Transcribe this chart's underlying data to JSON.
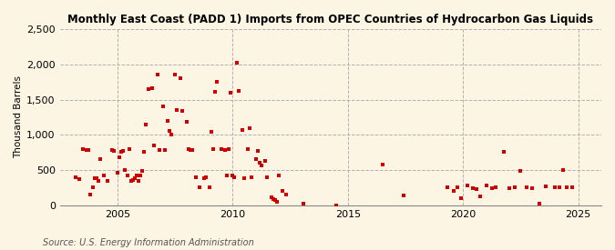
{
  "title": "Monthly East Coast (PADD 1) Imports from OPEC Countries of Hydrocarbon Gas Liquids",
  "ylabel": "Thousand Barrels",
  "source": "Source: U.S. Energy Information Administration",
  "background_color": "#fdf5e4",
  "dot_color": "#cc0000",
  "ylim": [
    0,
    2500
  ],
  "yticks": [
    0,
    500,
    1000,
    1500,
    2000,
    2500
  ],
  "ytick_labels": [
    "0",
    "500",
    "1,000",
    "1,500",
    "2,000",
    "2,500"
  ],
  "xlim": [
    2002.5,
    2026
  ],
  "xticks": [
    2005,
    2010,
    2015,
    2020,
    2025
  ],
  "data": [
    [
      2003.17,
      400
    ],
    [
      2003.33,
      370
    ],
    [
      2003.5,
      800
    ],
    [
      2003.67,
      790
    ],
    [
      2003.75,
      790
    ],
    [
      2003.83,
      155
    ],
    [
      2003.92,
      250
    ],
    [
      2004.0,
      380
    ],
    [
      2004.08,
      380
    ],
    [
      2004.17,
      350
    ],
    [
      2004.25,
      650
    ],
    [
      2004.42,
      430
    ],
    [
      2004.58,
      350
    ],
    [
      2004.75,
      790
    ],
    [
      2004.83,
      770
    ],
    [
      2005.0,
      460
    ],
    [
      2005.08,
      680
    ],
    [
      2005.17,
      760
    ],
    [
      2005.25,
      770
    ],
    [
      2005.33,
      500
    ],
    [
      2005.42,
      420
    ],
    [
      2005.5,
      800
    ],
    [
      2005.58,
      350
    ],
    [
      2005.67,
      360
    ],
    [
      2005.75,
      380
    ],
    [
      2005.83,
      425
    ],
    [
      2005.92,
      350
    ],
    [
      2006.0,
      430
    ],
    [
      2006.08,
      490
    ],
    [
      2006.17,
      760
    ],
    [
      2006.25,
      1150
    ],
    [
      2006.33,
      1650
    ],
    [
      2006.5,
      1660
    ],
    [
      2006.58,
      850
    ],
    [
      2006.75,
      1850
    ],
    [
      2006.83,
      790
    ],
    [
      2007.0,
      1400
    ],
    [
      2007.08,
      790
    ],
    [
      2007.17,
      1200
    ],
    [
      2007.25,
      1050
    ],
    [
      2007.33,
      1000
    ],
    [
      2007.5,
      1850
    ],
    [
      2007.58,
      1350
    ],
    [
      2007.75,
      1800
    ],
    [
      2007.83,
      1340
    ],
    [
      2008.0,
      1180
    ],
    [
      2008.08,
      800
    ],
    [
      2008.17,
      780
    ],
    [
      2008.25,
      780
    ],
    [
      2008.42,
      400
    ],
    [
      2008.58,
      250
    ],
    [
      2008.75,
      380
    ],
    [
      2008.83,
      400
    ],
    [
      2009.0,
      250
    ],
    [
      2009.08,
      1040
    ],
    [
      2009.17,
      800
    ],
    [
      2009.25,
      1610
    ],
    [
      2009.33,
      1750
    ],
    [
      2009.5,
      800
    ],
    [
      2009.67,
      790
    ],
    [
      2009.75,
      420
    ],
    [
      2009.83,
      800
    ],
    [
      2009.92,
      1600
    ],
    [
      2010.0,
      420
    ],
    [
      2010.08,
      400
    ],
    [
      2010.17,
      2020
    ],
    [
      2010.25,
      1620
    ],
    [
      2010.42,
      1070
    ],
    [
      2010.5,
      380
    ],
    [
      2010.67,
      800
    ],
    [
      2010.75,
      1100
    ],
    [
      2010.83,
      400
    ],
    [
      2011.0,
      650
    ],
    [
      2011.08,
      770
    ],
    [
      2011.17,
      600
    ],
    [
      2011.25,
      560
    ],
    [
      2011.42,
      630
    ],
    [
      2011.5,
      400
    ],
    [
      2011.67,
      120
    ],
    [
      2011.75,
      90
    ],
    [
      2011.83,
      80
    ],
    [
      2011.92,
      50
    ],
    [
      2012.0,
      420
    ],
    [
      2012.17,
      200
    ],
    [
      2012.33,
      150
    ],
    [
      2013.08,
      30
    ],
    [
      2014.5,
      0
    ],
    [
      2016.5,
      580
    ],
    [
      2017.42,
      140
    ],
    [
      2019.33,
      250
    ],
    [
      2019.58,
      210
    ],
    [
      2019.75,
      250
    ],
    [
      2019.92,
      100
    ],
    [
      2020.17,
      280
    ],
    [
      2020.42,
      240
    ],
    [
      2020.58,
      230
    ],
    [
      2020.75,
      130
    ],
    [
      2021.0,
      280
    ],
    [
      2021.25,
      240
    ],
    [
      2021.42,
      250
    ],
    [
      2021.75,
      760
    ],
    [
      2022.0,
      240
    ],
    [
      2022.25,
      250
    ],
    [
      2022.5,
      490
    ],
    [
      2022.75,
      250
    ],
    [
      2023.0,
      240
    ],
    [
      2023.33,
      20
    ],
    [
      2023.58,
      270
    ],
    [
      2024.0,
      260
    ],
    [
      2024.17,
      250
    ],
    [
      2024.33,
      500
    ],
    [
      2024.5,
      250
    ],
    [
      2024.75,
      250
    ]
  ]
}
